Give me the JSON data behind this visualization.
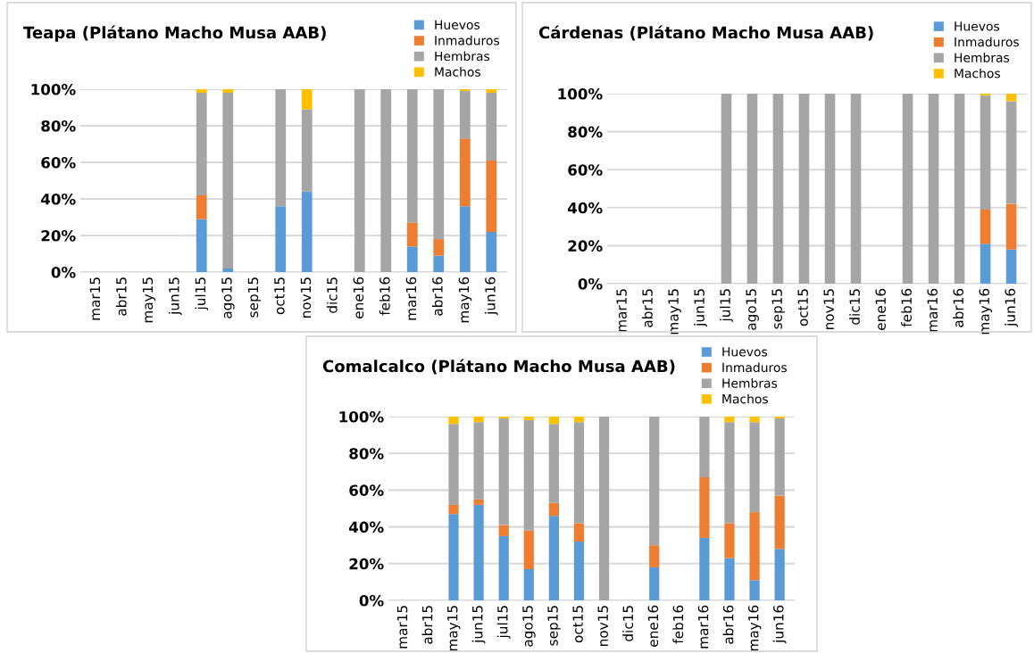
{
  "chart_data": [
    {
      "type": "bar",
      "stacked": true,
      "title": "Teapa (Plátano Macho Musa AAB)",
      "categories": [
        "mar15",
        "abr15",
        "may15",
        "jun15",
        "jul15",
        "ago15",
        "sep15",
        "oct15",
        "nov15",
        "dic15",
        "ene16",
        "feb16",
        "mar16",
        "abr16",
        "may16",
        "jun16"
      ],
      "series": [
        {
          "name": "Huevos",
          "color": "#5b9bd5",
          "values": [
            0,
            0,
            0,
            0,
            29,
            2,
            0,
            36,
            44,
            0,
            0,
            0,
            14,
            9,
            36,
            22
          ]
        },
        {
          "name": "Inmaduros",
          "color": "#ed7d31",
          "values": [
            0,
            0,
            0,
            0,
            13,
            0,
            0,
            0,
            0,
            0,
            0,
            0,
            13,
            9,
            37,
            39
          ]
        },
        {
          "name": "Hembras",
          "color": "#a5a5a5",
          "values": [
            0,
            0,
            0,
            0,
            56,
            96,
            0,
            64,
            45,
            0,
            100,
            100,
            73,
            82,
            26,
            37
          ]
        },
        {
          "name": "Machos",
          "color": "#ffc000",
          "values": [
            0,
            0,
            0,
            0,
            2,
            2,
            0,
            0,
            11,
            0,
            0,
            0,
            0,
            0,
            1,
            2
          ]
        }
      ],
      "ylim": [
        0,
        100
      ],
      "yticks": [
        {
          "value": 0,
          "label": "0%"
        },
        {
          "value": 20,
          "label": "20%"
        },
        {
          "value": 40,
          "label": "40%"
        },
        {
          "value": 60,
          "label": "60%"
        },
        {
          "value": 80,
          "label": "80%"
        },
        {
          "value": 100,
          "label": "100%"
        }
      ],
      "grid": "y",
      "legend": "top right"
    },
    {
      "type": "bar",
      "stacked": true,
      "title": "Cárdenas (Plátano Macho Musa AAB)",
      "categories": [
        "mar15",
        "abr15",
        "may15",
        "jun15",
        "jul15",
        "ago15",
        "sep15",
        "oct15",
        "nov15",
        "dic15",
        "ene16",
        "feb16",
        "mar16",
        "abr16",
        "may16",
        "jun16"
      ],
      "series": [
        {
          "name": "Huevos",
          "color": "#5b9bd5",
          "values": [
            0,
            0,
            0,
            0,
            0,
            0,
            0,
            0,
            0,
            0,
            0,
            0,
            0,
            0,
            21,
            18
          ]
        },
        {
          "name": "Inmaduros",
          "color": "#ed7d31",
          "values": [
            0,
            0,
            0,
            0,
            0,
            0,
            0,
            0,
            0,
            0,
            0,
            0,
            0,
            0,
            18,
            24
          ]
        },
        {
          "name": "Hembras",
          "color": "#a5a5a5",
          "values": [
            0,
            0,
            0,
            0,
            100,
            100,
            100,
            100,
            100,
            100,
            0,
            100,
            100,
            100,
            60,
            54
          ]
        },
        {
          "name": "Machos",
          "color": "#ffc000",
          "values": [
            0,
            0,
            0,
            0,
            0,
            0,
            0,
            0,
            0,
            0,
            0,
            0,
            0,
            0,
            1,
            4
          ]
        }
      ],
      "ylim": [
        0,
        100
      ],
      "yticks": [
        {
          "value": 0,
          "label": "0%"
        },
        {
          "value": 20,
          "label": "20%"
        },
        {
          "value": 40,
          "label": "40%"
        },
        {
          "value": 60,
          "label": "60%"
        },
        {
          "value": 80,
          "label": "80%"
        },
        {
          "value": 100,
          "label": "100%"
        }
      ],
      "grid": "y",
      "legend": "top right"
    },
    {
      "type": "bar",
      "stacked": true,
      "title": "Comalcalco (Plátano Macho Musa AAB)",
      "categories": [
        "mar15",
        "abr15",
        "may15",
        "jun15",
        "jul15",
        "ago15",
        "sep15",
        "oct15",
        "nov15",
        "dic15",
        "ene16",
        "feb16",
        "mar16",
        "abr16",
        "may16",
        "jun16"
      ],
      "series": [
        {
          "name": "Huevos",
          "color": "#5b9bd5",
          "values": [
            0,
            0,
            47,
            52,
            35,
            17,
            46,
            32,
            0,
            0,
            18,
            0,
            34,
            23,
            11,
            28
          ]
        },
        {
          "name": "Inmaduros",
          "color": "#ed7d31",
          "values": [
            0,
            0,
            5,
            3,
            6,
            21,
            7,
            10,
            0,
            0,
            12,
            0,
            33,
            19,
            37,
            29
          ]
        },
        {
          "name": "Hembras",
          "color": "#a5a5a5",
          "values": [
            0,
            0,
            44,
            42,
            58,
            60,
            43,
            55,
            100,
            0,
            70,
            0,
            33,
            55,
            49,
            42
          ]
        },
        {
          "name": "Machos",
          "color": "#ffc000",
          "values": [
            0,
            0,
            4,
            3,
            1,
            2,
            4,
            3,
            0,
            0,
            0,
            0,
            0,
            3,
            3,
            1
          ]
        }
      ],
      "ylim": [
        0,
        100
      ],
      "yticks": [
        {
          "value": 0,
          "label": "0%"
        },
        {
          "value": 20,
          "label": "20%"
        },
        {
          "value": 40,
          "label": "40%"
        },
        {
          "value": 60,
          "label": "60%"
        },
        {
          "value": 80,
          "label": "80%"
        },
        {
          "value": 100,
          "label": "100%"
        }
      ],
      "grid": "y",
      "legend": "top right"
    }
  ]
}
